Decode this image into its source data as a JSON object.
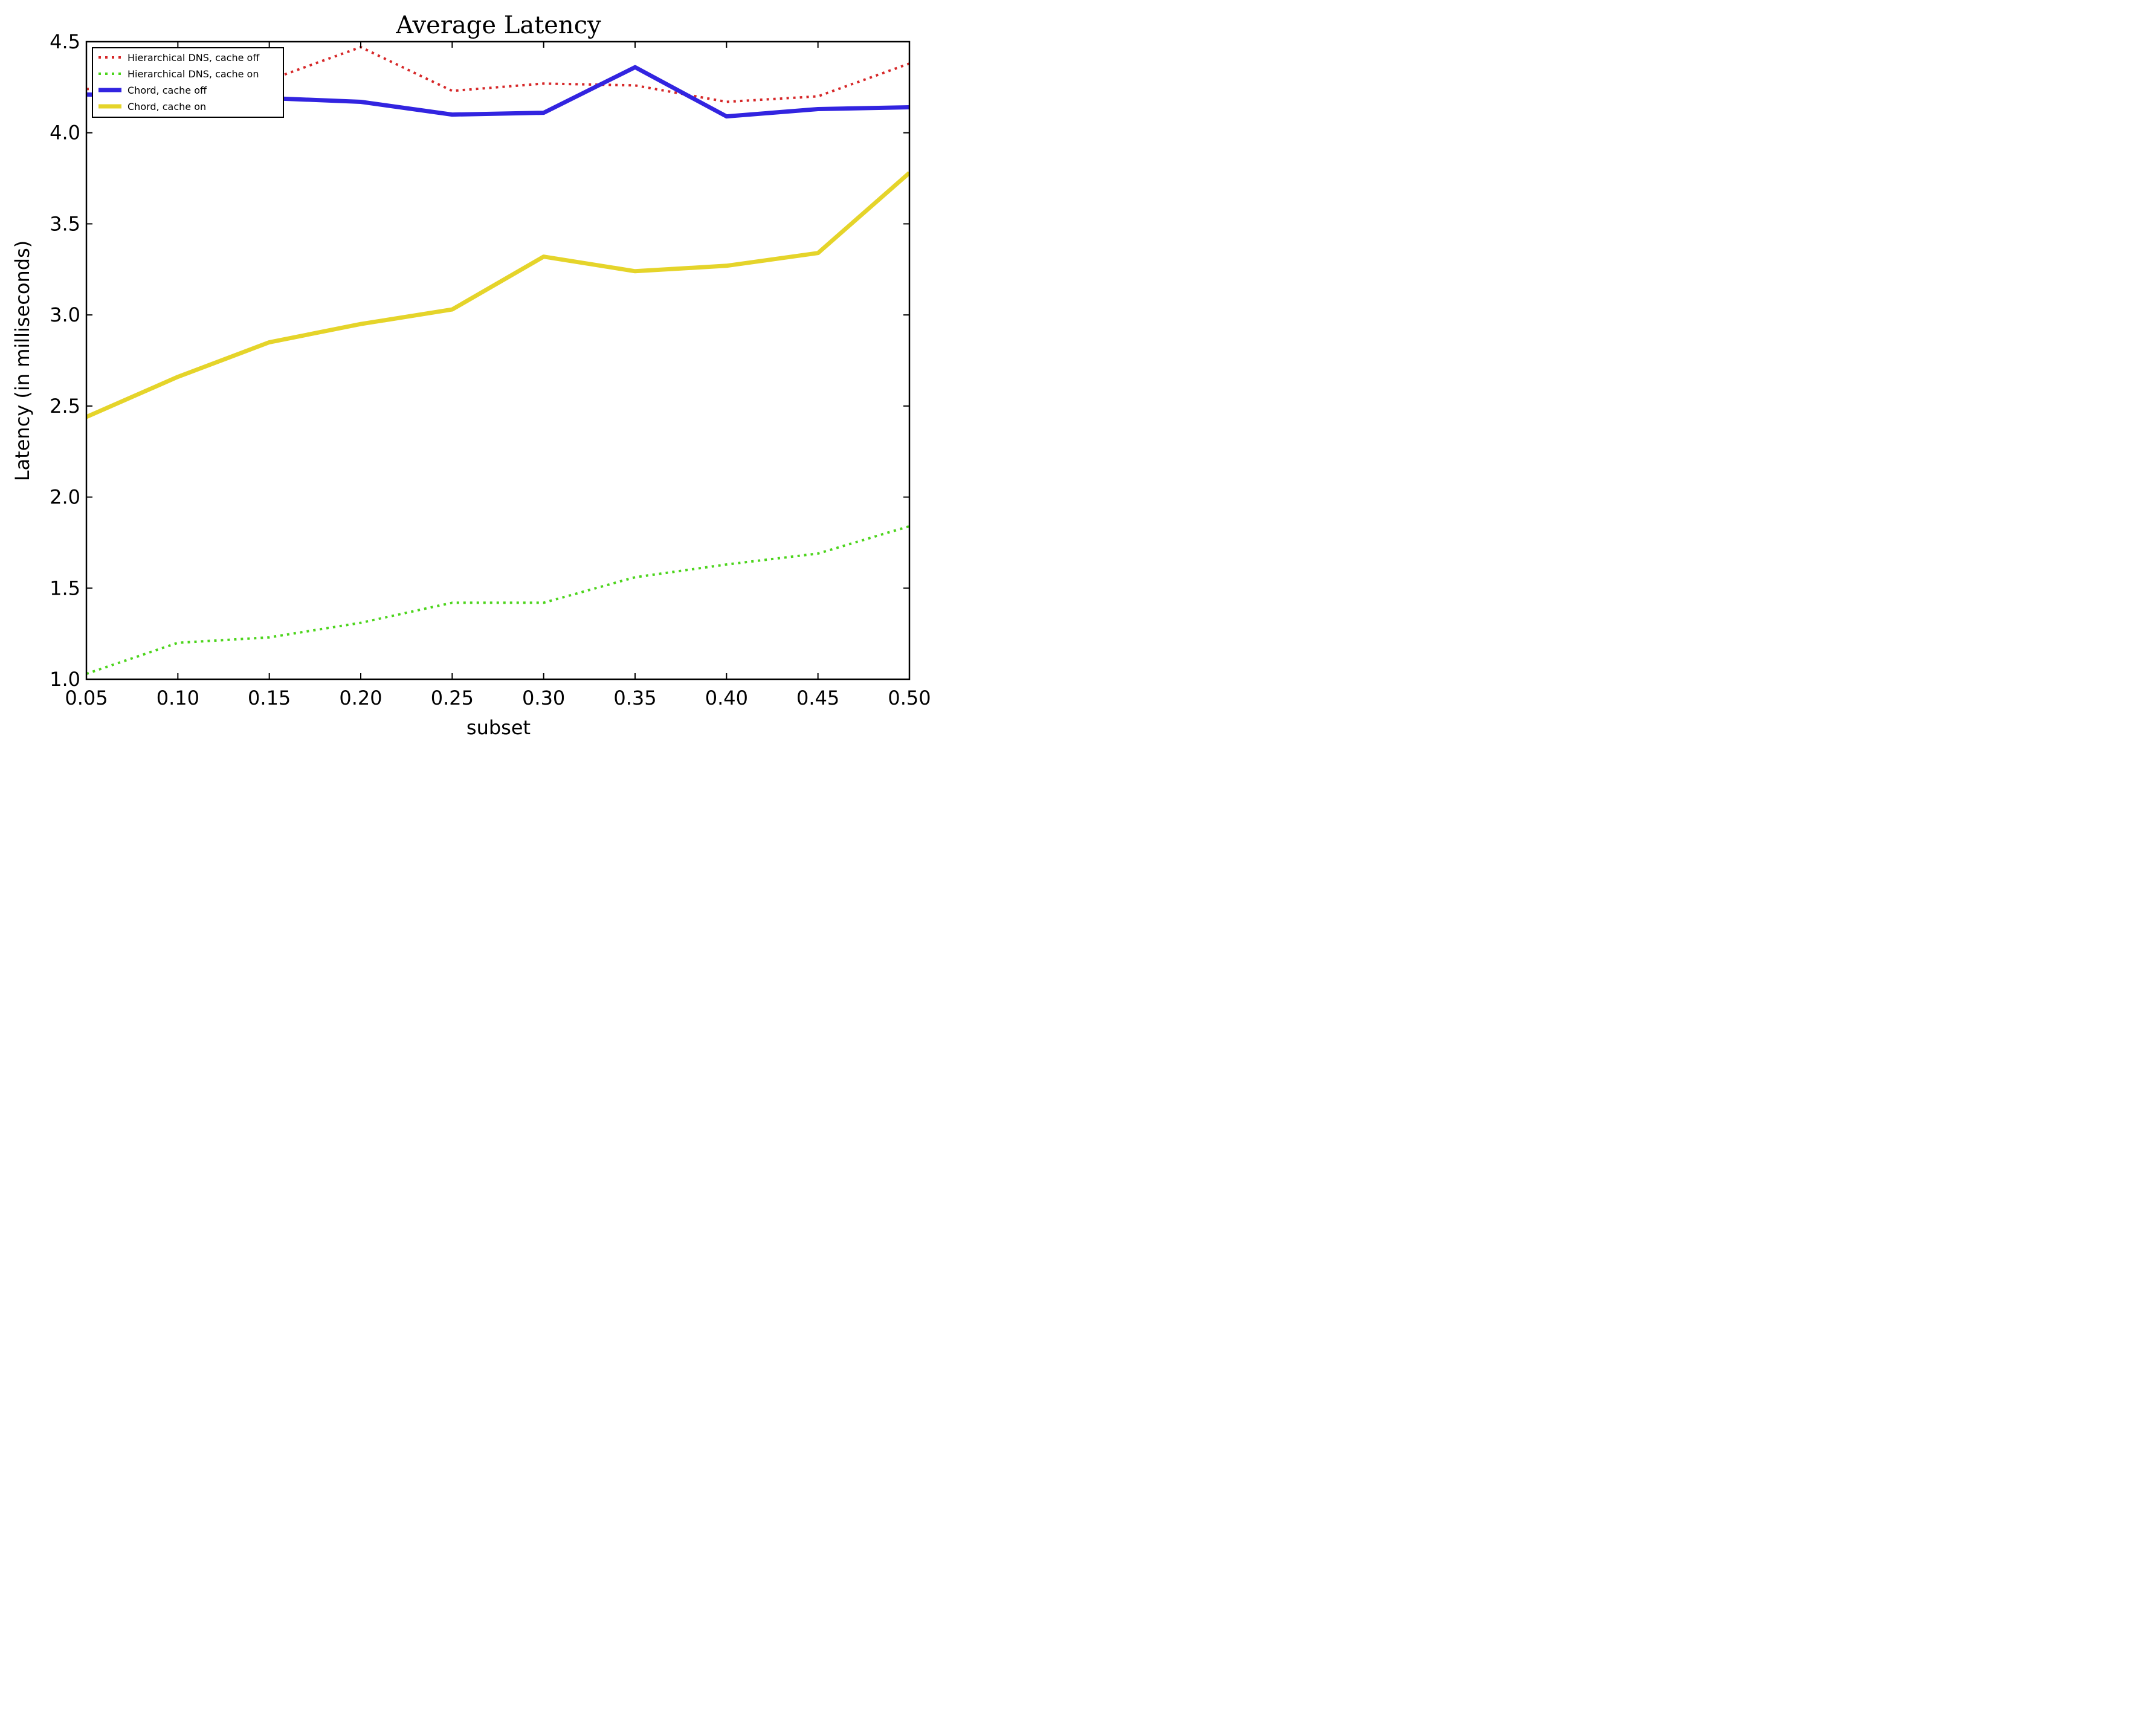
{
  "chart_data": {
    "type": "line",
    "title": "Average Latency",
    "xlabel": "subset",
    "ylabel": "Latency (in milliseconds)",
    "xlim": [
      0.05,
      0.5
    ],
    "ylim": [
      1.0,
      4.5
    ],
    "x_ticks": [
      "0.05",
      "0.10",
      "0.15",
      "0.20",
      "0.25",
      "0.30",
      "0.35",
      "0.40",
      "0.45",
      "0.50"
    ],
    "y_ticks": [
      "1.0",
      "1.5",
      "2.0",
      "2.5",
      "3.0",
      "3.5",
      "4.0",
      "4.5"
    ],
    "grid": false,
    "legend_position": "top-left",
    "x": [
      0.05,
      0.1,
      0.15,
      0.2,
      0.25,
      0.3,
      0.35,
      0.4,
      0.45,
      0.5
    ],
    "series": [
      {
        "name": "Hierarchical DNS, cache off",
        "color": "#d62728",
        "style": "dotted",
        "values": [
          4.24,
          4.26,
          4.29,
          4.47,
          4.23,
          4.27,
          4.26,
          4.17,
          4.2,
          4.38
        ]
      },
      {
        "name": "Hierarchical DNS, cache on",
        "color": "#4cd41c",
        "style": "dotted",
        "values": [
          1.03,
          1.2,
          1.23,
          1.31,
          1.42,
          1.42,
          1.56,
          1.63,
          1.69,
          1.84
        ]
      },
      {
        "name": "Chord, cache off",
        "color": "#3224e0",
        "style": "solid",
        "values": [
          4.21,
          4.2,
          4.19,
          4.17,
          4.1,
          4.11,
          4.36,
          4.09,
          4.13,
          4.14
        ]
      },
      {
        "name": "Chord, cache on",
        "color": "#e5d42a",
        "style": "solid",
        "values": [
          2.44,
          2.66,
          2.85,
          2.95,
          3.03,
          3.32,
          3.24,
          3.27,
          3.34,
          3.78
        ]
      }
    ]
  }
}
